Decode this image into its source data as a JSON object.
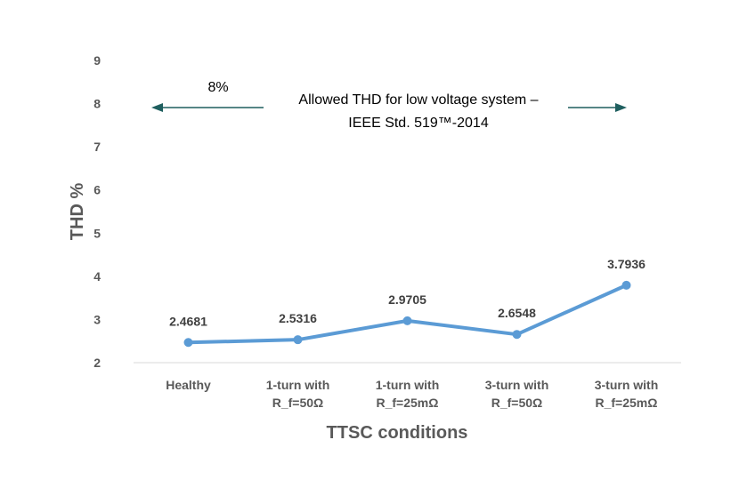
{
  "chart_data": {
    "type": "line",
    "title": "",
    "xlabel": "TTSC conditions",
    "ylabel": "THD %",
    "ylim": [
      2,
      9
    ],
    "yticks": [
      "2",
      "3",
      "4",
      "5",
      "6",
      "7",
      "8",
      "9"
    ],
    "categories": [
      [
        "Healthy"
      ],
      [
        "1-turn with",
        "R_f=50Ω"
      ],
      [
        "1-turn with",
        "R_f=25mΩ"
      ],
      [
        "3-turn with",
        "R_f=50Ω"
      ],
      [
        "3-turn with",
        "R_f=25mΩ"
      ]
    ],
    "values": [
      2.4681,
      2.5316,
      2.9705,
      2.6548,
      3.7936
    ],
    "data_labels": [
      "2.4681",
      "2.5316",
      "2.9705",
      "2.6548",
      "3.7936"
    ],
    "grid": false,
    "legend": "none",
    "series_color": "#5b9bd5",
    "annotation": {
      "limit_label": "8%",
      "limit_value": 8,
      "text_line1": "Allowed THD for low voltage system –",
      "text_line2": "IEEE Std. 519™-2014",
      "arrow_color": "#1f5f5f"
    }
  }
}
